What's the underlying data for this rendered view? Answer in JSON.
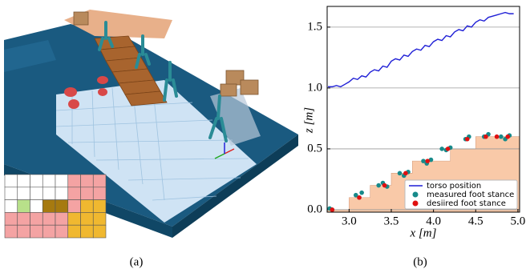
{
  "figure_labels": {
    "a": "(a)",
    "b": "(b)"
  },
  "chart_data": {
    "type": "line",
    "xlabel": "x [m]",
    "ylabel": "z [m]",
    "xlim": [
      2.74,
      5.02
    ],
    "ylim": [
      -0.02,
      1.67
    ],
    "xticks": [
      {
        "value": 3,
        "label": "3.0"
      },
      3.5,
      {
        "value": 4,
        "label": "4.0"
      },
      4.5,
      {
        "value": 5,
        "label": "5.0"
      }
    ],
    "yticks": [
      {
        "value": 0,
        "label": "0.0"
      },
      0.5,
      {
        "value": 1,
        "label": "1.0"
      },
      1.5
    ],
    "grid": "y",
    "legend": "lower right",
    "terrain": {
      "color": "#f9c9a8",
      "x": [
        2.74,
        3.0,
        3.0,
        3.25,
        3.25,
        3.5,
        3.5,
        3.75,
        3.75,
        4.2,
        4.2,
        4.5,
        4.5,
        5.02
      ],
      "values": [
        0,
        0,
        0.1,
        0.1,
        0.2,
        0.2,
        0.3,
        0.3,
        0.4,
        0.4,
        0.5,
        0.5,
        0.6,
        0.6
      ]
    },
    "series": [
      {
        "name": "torso position",
        "type": "line",
        "color": "#1f1fd6",
        "x": [
          2.75,
          2.8,
          2.85,
          2.9,
          2.95,
          3.0,
          3.05,
          3.1,
          3.15,
          3.2,
          3.25,
          3.3,
          3.35,
          3.4,
          3.45,
          3.5,
          3.55,
          3.6,
          3.65,
          3.7,
          3.75,
          3.8,
          3.85,
          3.9,
          3.95,
          4.0,
          4.05,
          4.1,
          4.15,
          4.2,
          4.25,
          4.3,
          4.35,
          4.4,
          4.45,
          4.5,
          4.55,
          4.6,
          4.65,
          4.7,
          4.75,
          4.8,
          4.85,
          4.9,
          4.95
        ],
        "values": [
          1.01,
          1.01,
          1.02,
          1.01,
          1.03,
          1.05,
          1.08,
          1.07,
          1.1,
          1.09,
          1.13,
          1.15,
          1.14,
          1.18,
          1.17,
          1.22,
          1.24,
          1.23,
          1.27,
          1.26,
          1.3,
          1.32,
          1.31,
          1.35,
          1.34,
          1.38,
          1.4,
          1.39,
          1.43,
          1.42,
          1.46,
          1.48,
          1.47,
          1.51,
          1.5,
          1.54,
          1.56,
          1.55,
          1.58,
          1.59,
          1.6,
          1.61,
          1.62,
          1.61,
          1.61
        ]
      },
      {
        "name": "measured foot stance",
        "type": "scatter",
        "color": "#178a8a",
        "x": [
          2.77,
          2.8,
          3.08,
          3.12,
          3.15,
          3.35,
          3.4,
          3.45,
          3.6,
          3.65,
          3.7,
          3.88,
          3.92,
          3.97,
          4.1,
          4.15,
          4.2,
          4.38,
          4.42,
          4.6,
          4.65,
          4.8,
          4.85,
          4.9
        ],
        "values": [
          0.01,
          0,
          0.12,
          0.1,
          0.14,
          0.2,
          0.22,
          0.19,
          0.3,
          0.28,
          0.31,
          0.4,
          0.38,
          0.41,
          0.5,
          0.49,
          0.51,
          0.58,
          0.6,
          0.6,
          0.62,
          0.6,
          0.58,
          0.61
        ]
      },
      {
        "name": "desiired foot stance",
        "type": "scatter",
        "color": "#e01010",
        "x": [
          2.8,
          3.12,
          3.42,
          3.67,
          3.93,
          4.17,
          4.4,
          4.62,
          4.75,
          4.88
        ],
        "values": [
          0,
          0.1,
          0.2,
          0.3,
          0.4,
          0.5,
          0.58,
          0.6,
          0.6,
          0.6
        ]
      }
    ]
  }
}
